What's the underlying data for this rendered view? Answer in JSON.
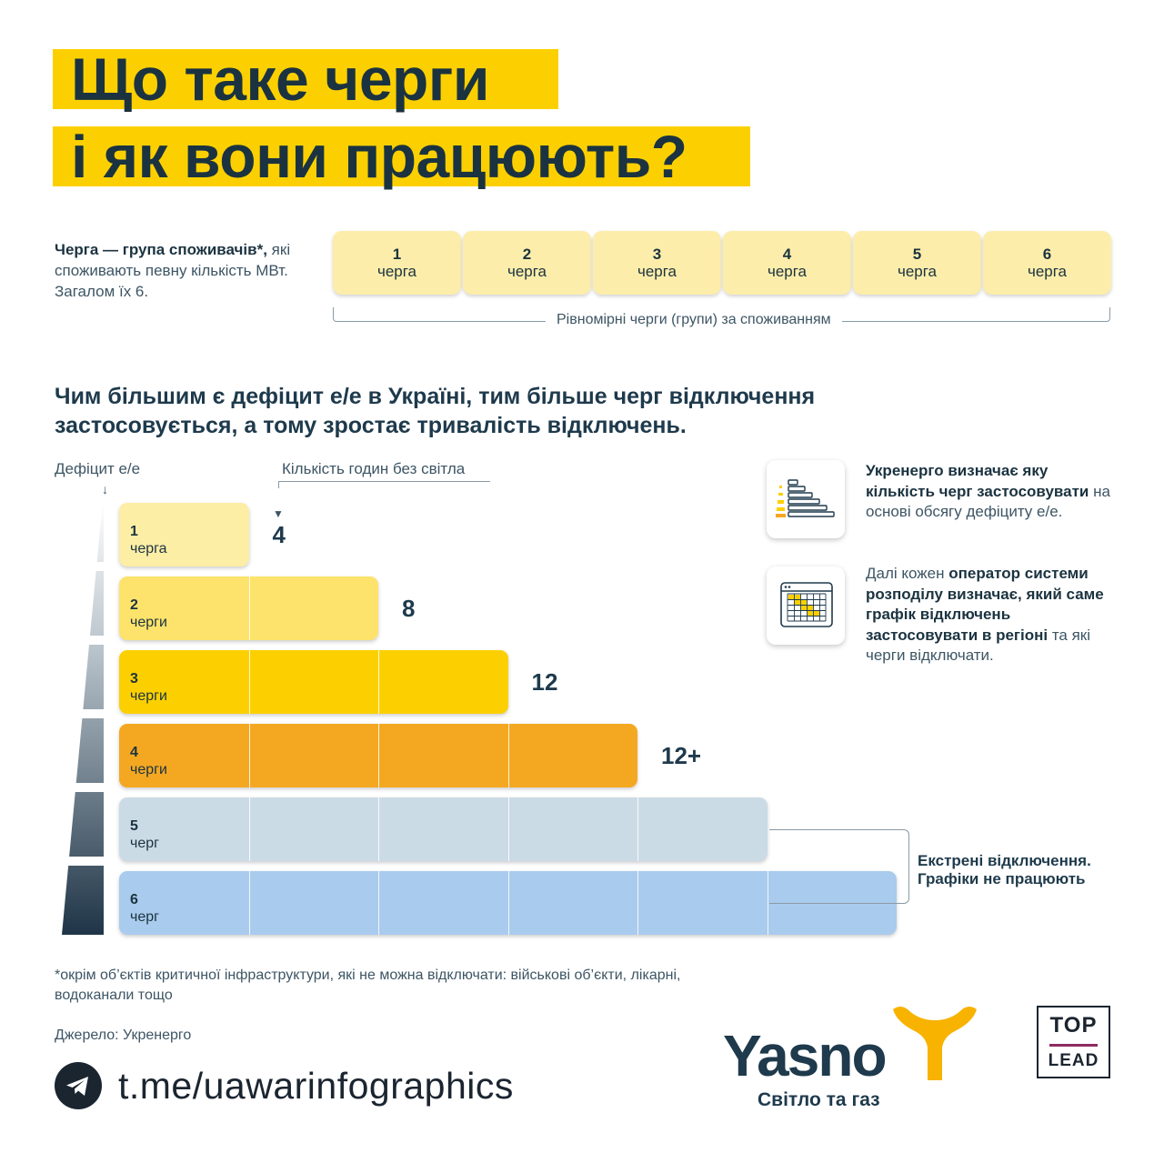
{
  "title": {
    "line1": "Що таке черги",
    "line2": "і як вони працюють?"
  },
  "definition": {
    "bold": "Черга — група споживачів*,",
    "rest": "які споживають певну кількість МВт. Загалом їх 6."
  },
  "queues": [
    {
      "num": "1",
      "word": "черга"
    },
    {
      "num": "2",
      "word": "черга"
    },
    {
      "num": "3",
      "word": "черга"
    },
    {
      "num": "4",
      "word": "черга"
    },
    {
      "num": "5",
      "word": "черга"
    },
    {
      "num": "6",
      "word": "черга"
    }
  ],
  "queues_caption": "Рівномірні черги (групи) за споживанням",
  "subheading": "Чим більшим є дефіцит е/е в Україні, тим більше черг відключення застосовується, а тому зростає тривалість відключень.",
  "deficit_label": "Дефіцит е/е",
  "hours_label": "Кількість годин без світла",
  "chart_data": {
    "type": "bar",
    "categories": [
      "1 черга",
      "2 черги",
      "3 черги",
      "4 черги",
      "5 черг",
      "6 черг"
    ],
    "values": [
      1,
      2,
      3,
      4,
      5,
      6
    ],
    "bars": [
      {
        "num": "1",
        "word": "черга",
        "count": 1,
        "hours": "4",
        "color": "#fdeea6"
      },
      {
        "num": "2",
        "word": "черги",
        "count": 2,
        "hours": "8",
        "color": "#fde36b"
      },
      {
        "num": "3",
        "word": "черги",
        "count": 3,
        "hours": "12",
        "color": "#fcd000"
      },
      {
        "num": "4",
        "word": "черги",
        "count": 4,
        "hours": "12+",
        "color": "#f4a822"
      },
      {
        "num": "5",
        "word": "черг",
        "count": 5,
        "hours": "",
        "color": "#cbdbe6"
      },
      {
        "num": "6",
        "word": "черг",
        "count": 6,
        "hours": "",
        "color": "#a9cbed"
      }
    ]
  },
  "emergency": {
    "line1": "Екстрені відключення.",
    "line2": "Графіки не працюють"
  },
  "info1": {
    "bold1": "Укренерго визначає яку кількість черг застосовувати",
    "rest": " на основі обсягу дефіциту е/е."
  },
  "info2": {
    "t1": "Далі кожен ",
    "b1": "оператор системи розподілу визначає, який саме графік відключень застосовувати в регіоні",
    "t2": " та які черги відключати."
  },
  "footnote": "*окрім об’єктів критичної інфраструктури, які не можна відключати: військові об’єкти, лікарні, водоканали тощо",
  "source": "Джерело: Укренерго",
  "telegram": {
    "icon": "telegram-icon",
    "link": "t.me/uawarinfographics"
  },
  "brand": {
    "name": "Yasno",
    "tagline": "Світло та газ",
    "accent": "#f8b200"
  },
  "partner": {
    "top": "TOP",
    "lead": "LEAD",
    "accent": "#8e2a62"
  },
  "colors": {
    "title_bg": "#fcd000",
    "text": "#1e3a4c"
  }
}
